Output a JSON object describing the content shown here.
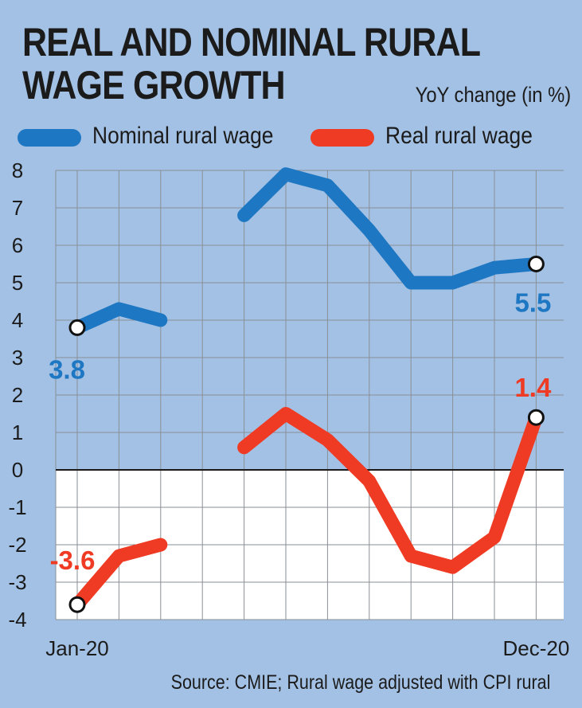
{
  "chart_data": {
    "type": "line",
    "title": "REAL AND NOMINAL RURAL WAGE GROWTH",
    "title_lines": [
      "REAL AND NOMINAL RURAL",
      "WAGE GROWTH"
    ],
    "subtitle": "YoY change (in %)",
    "x": [
      "Jan-20",
      "Feb-20",
      "Mar-20",
      "Apr-20",
      "May-20",
      "Jun-20",
      "Jul-20",
      "Aug-20",
      "Sep-20",
      "Oct-20",
      "Nov-20",
      "Dec-20"
    ],
    "x_tick_labels": [
      {
        "index": 0,
        "label": "Jan-20"
      },
      {
        "index": 11,
        "label": "Dec-20"
      }
    ],
    "y_ticks": [
      "8",
      "7",
      "6",
      "5",
      "4",
      "3",
      "2",
      "1",
      "0",
      "-1",
      "-2",
      "-3",
      "-4"
    ],
    "ylim": [
      -4,
      8
    ],
    "grid": true,
    "legend_position": "top",
    "series": [
      {
        "name": "Nominal rural wage",
        "color": "#1e77c2",
        "values": [
          3.8,
          4.3,
          4.0,
          null,
          6.8,
          7.9,
          7.6,
          6.4,
          5.0,
          5.0,
          5.4,
          5.5
        ],
        "annotations": [
          {
            "index": 0,
            "label": "3.8"
          },
          {
            "index": 11,
            "label": "5.5"
          }
        ]
      },
      {
        "name": "Real rural wage",
        "color": "#ef3b23",
        "values": [
          -3.6,
          -2.3,
          -2.0,
          null,
          0.6,
          1.5,
          0.8,
          -0.3,
          -2.3,
          -2.6,
          -1.8,
          1.4
        ],
        "annotations": [
          {
            "index": 0,
            "label": "-3.6"
          },
          {
            "index": 11,
            "label": "1.4"
          }
        ]
      }
    ],
    "source": "Source: CMIE; Rural wage adjusted with CPI rural"
  }
}
